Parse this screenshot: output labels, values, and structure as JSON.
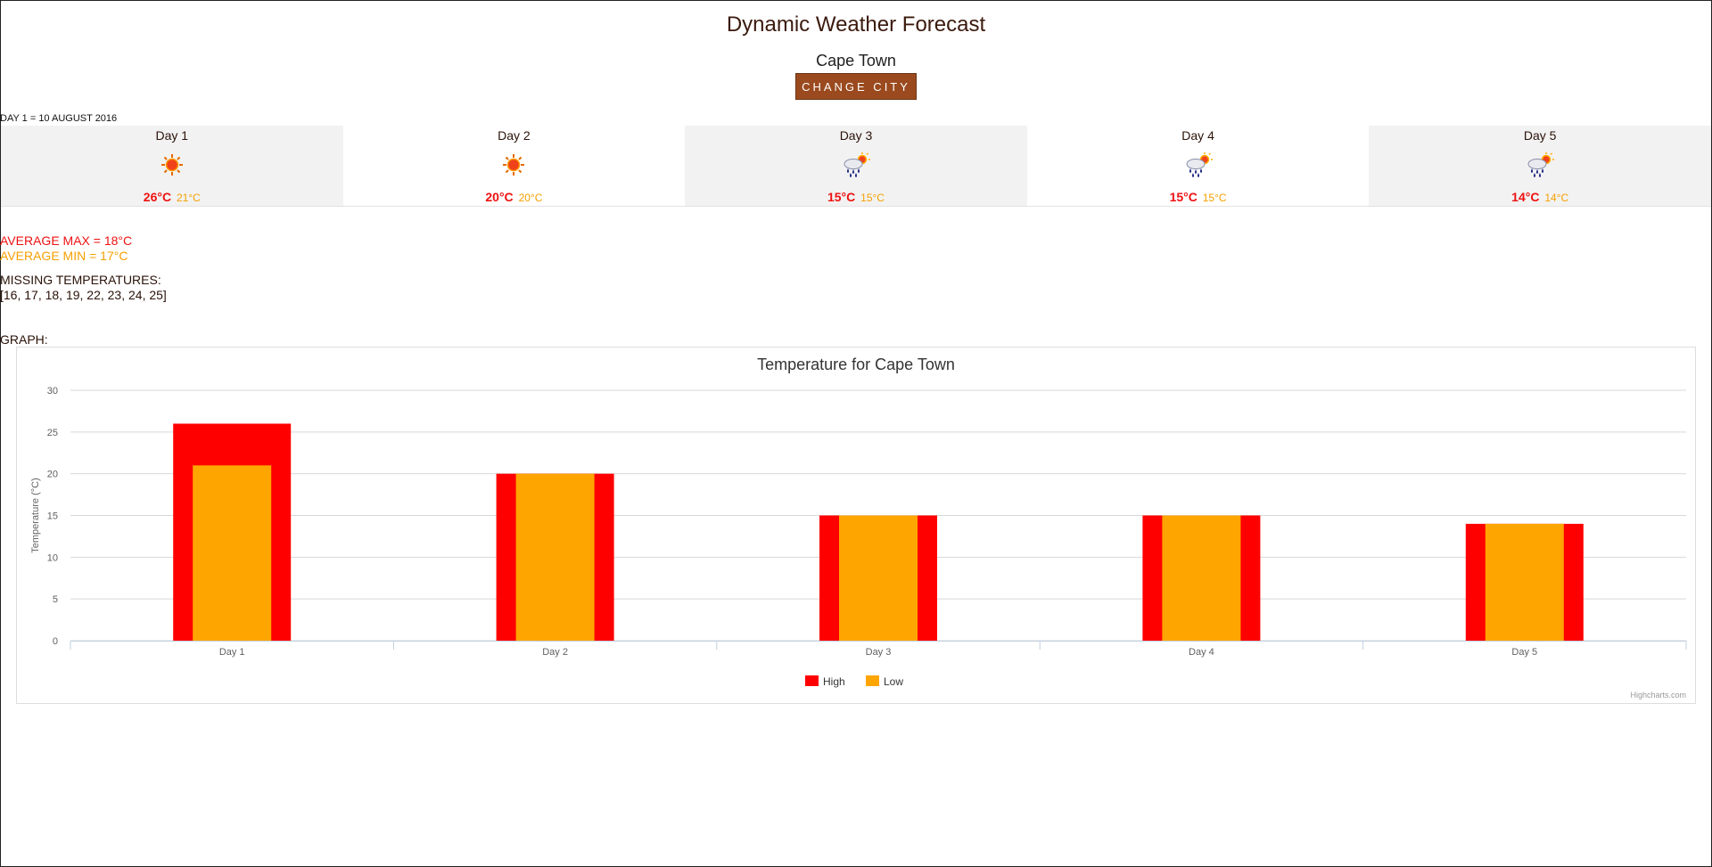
{
  "page": {
    "title": "Dynamic Weather Forecast",
    "city": "Cape Town",
    "change_city_label": "CHANGE CITY",
    "day_note": "DAY 1 = 10 AUGUST 2016"
  },
  "forecast": [
    {
      "label": "Day 1",
      "icon": "sun-icon",
      "high": "26°C",
      "low": "21°C"
    },
    {
      "label": "Day 2",
      "icon": "sun-icon",
      "high": "20°C",
      "low": "20°C"
    },
    {
      "label": "Day 3",
      "icon": "rain-cloud-sun-icon",
      "high": "15°C",
      "low": "15°C"
    },
    {
      "label": "Day 4",
      "icon": "rain-cloud-sun-icon",
      "high": "15°C",
      "low": "15°C"
    },
    {
      "label": "Day 5",
      "icon": "rain-cloud-sun-icon",
      "high": "14°C",
      "low": "14°C"
    }
  ],
  "stats": {
    "average_max": "AVERAGE MAX = 18°C",
    "average_min": "AVERAGE MIN = 17°C",
    "missing_label": "MISSING TEMPERATURES:",
    "missing_values": "[16, 17, 18, 19, 22, 23, 24, 25]",
    "graph_label": "GRAPH:"
  },
  "colors": {
    "high": "#ff0000",
    "low": "#ffa500",
    "button": "#9a4a1e"
  },
  "chart_data": {
    "type": "bar",
    "title": "Temperature for Cape Town",
    "xlabel": "",
    "ylabel": "Temperature (°C)",
    "ylim": [
      0,
      30
    ],
    "yticks": [
      0,
      5,
      10,
      15,
      20,
      25,
      30
    ],
    "categories": [
      "Day 1",
      "Day 2",
      "Day 3",
      "Day 4",
      "Day 5"
    ],
    "series": [
      {
        "name": "High",
        "values": [
          26,
          20,
          15,
          15,
          14
        ]
      },
      {
        "name": "Low",
        "values": [
          21,
          20,
          15,
          15,
          14
        ]
      }
    ],
    "legend_position": "bottom-center",
    "grid": true,
    "credits": "Highcharts.com"
  }
}
